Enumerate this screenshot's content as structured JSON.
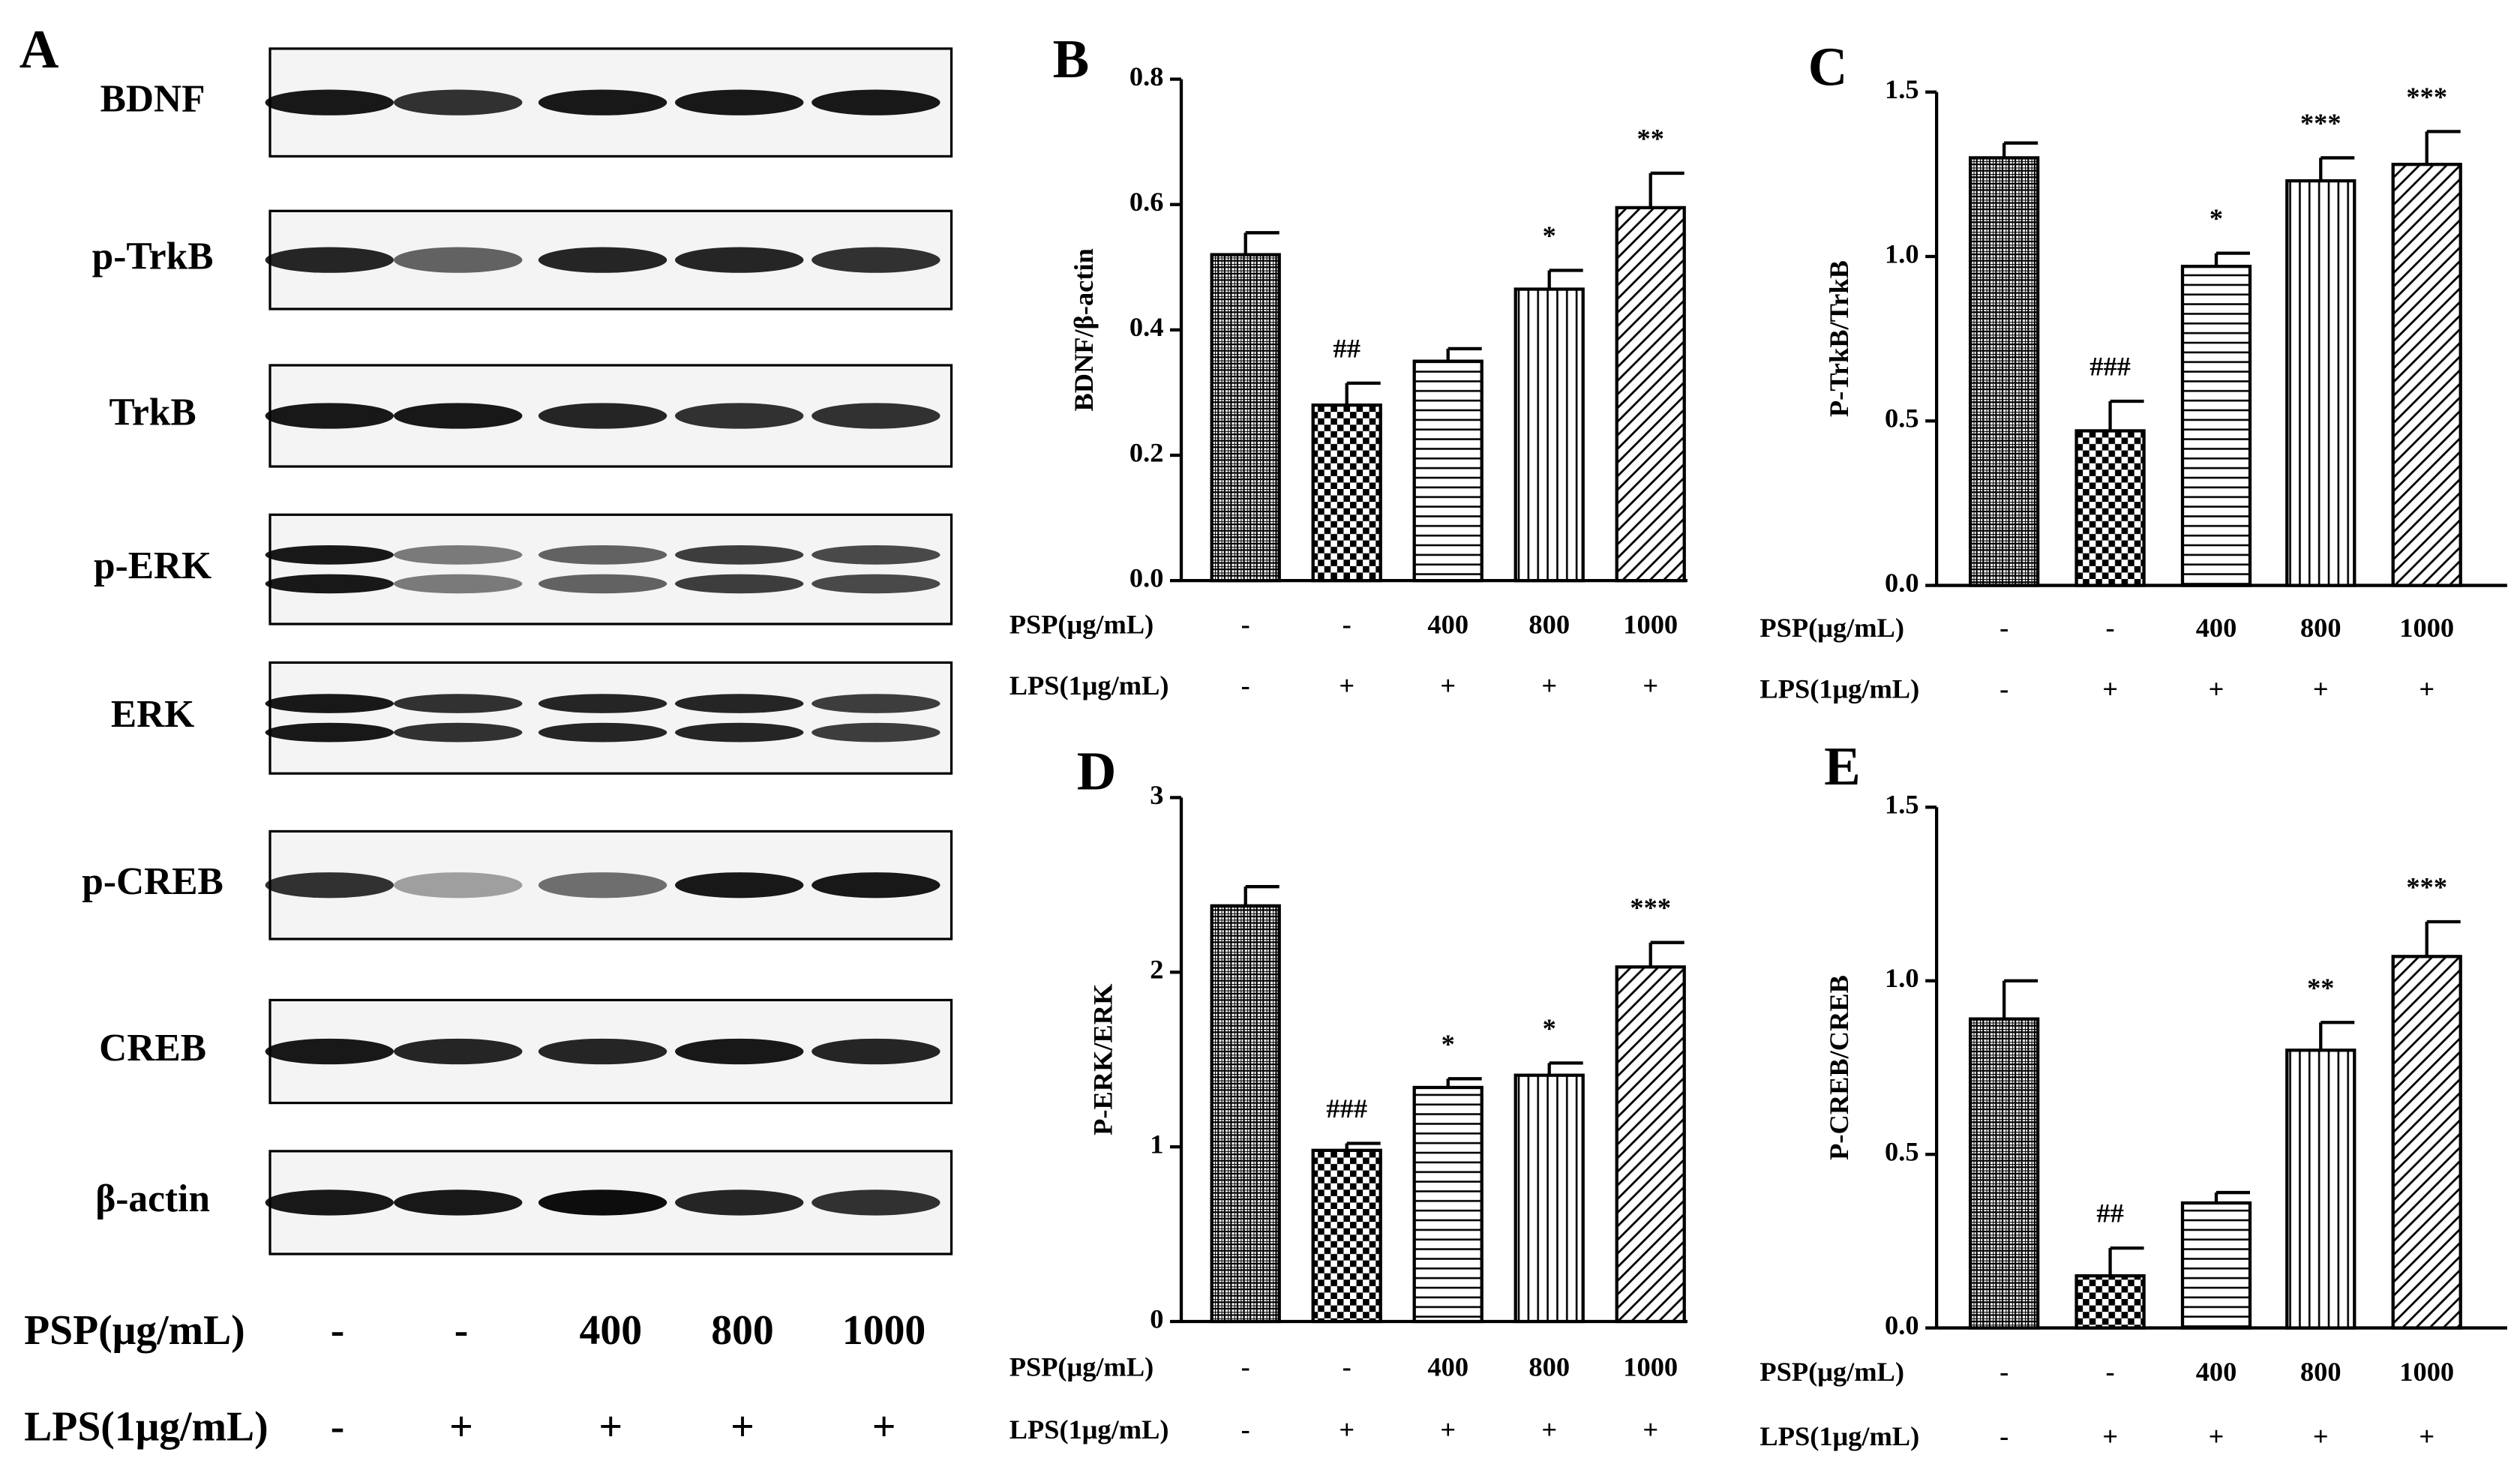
{
  "blot": {
    "panel": "A",
    "rows": [
      "BDNF",
      "p-TrkB",
      "TrkB",
      "p-ERK",
      "ERK",
      "p-CREB",
      "CREB",
      "β-actin"
    ],
    "treatments": [
      {
        "name": "PSP(μg/mL)",
        "labels": [
          "-",
          "-",
          "400",
          "800",
          "1000"
        ]
      },
      {
        "name": "LPS(1μg/mL)",
        "labels": [
          "-",
          "+",
          "+",
          "+",
          "+"
        ]
      }
    ]
  },
  "chart_data": [
    {
      "type": "bar",
      "panel": "B",
      "ylabel": "BDNF/β-actin",
      "values": [
        0.52,
        0.28,
        0.35,
        0.465,
        0.595
      ],
      "errors": [
        0.035,
        0.035,
        0.02,
        0.03,
        0.055
      ],
      "annotations": [
        null,
        "##",
        null,
        "*",
        "**"
      ],
      "patterns": [
        "crosshatch",
        "checker",
        "hlines",
        "vlines",
        "diagonal"
      ],
      "ylim": [
        0,
        0.8
      ],
      "yticks": [
        {
          "value": 0,
          "label": "0.0"
        },
        0.2,
        0.4,
        0.6,
        0.8
      ],
      "treatments": [
        {
          "name": "PSP(μg/mL)",
          "labels": [
            "-",
            "-",
            "400",
            "800",
            "1000"
          ]
        },
        {
          "name": "LPS(1μg/mL)",
          "labels": [
            "-",
            "+",
            "+",
            "+",
            "+"
          ]
        }
      ]
    },
    {
      "type": "bar",
      "panel": "C",
      "ylabel": "P-TrkB/TrkB",
      "values": [
        1.3,
        0.47,
        0.97,
        1.23,
        1.28
      ],
      "errors": [
        0.045,
        0.09,
        0.04,
        0.07,
        0.1
      ],
      "annotations": [
        null,
        "###",
        "*",
        "***",
        "***"
      ],
      "patterns": [
        "crosshatch",
        "checker",
        "hlines",
        "vlines",
        "diagonal"
      ],
      "ylim": [
        0,
        1.5
      ],
      "yticks": [
        {
          "value": 0,
          "label": "0.0"
        },
        0.5,
        {
          "value": 1,
          "label": "1.0"
        },
        1.5
      ],
      "treatments": [
        {
          "name": "PSP(μg/mL)",
          "labels": [
            "-",
            "-",
            "400",
            "800",
            "1000"
          ]
        },
        {
          "name": "LPS(1μg/mL)",
          "labels": [
            "-",
            "+",
            "+",
            "+",
            "+"
          ]
        }
      ]
    },
    {
      "type": "bar",
      "panel": "D",
      "ylabel": "P-ERK/ERK",
      "values": [
        2.38,
        0.98,
        1.34,
        1.41,
        2.03
      ],
      "errors": [
        0.11,
        0.04,
        0.05,
        0.07,
        0.14
      ],
      "annotations": [
        null,
        "###",
        "*",
        "*",
        "***"
      ],
      "patterns": [
        "crosshatch",
        "checker",
        "hlines",
        "vlines",
        "diagonal"
      ],
      "ylim": [
        0,
        3
      ],
      "yticks": [
        0,
        1,
        2,
        3
      ],
      "treatments": [
        {
          "name": "PSP(μg/mL)",
          "labels": [
            "-",
            "-",
            "400",
            "800",
            "1000"
          ]
        },
        {
          "name": "LPS(1μg/mL)",
          "labels": [
            "-",
            "+",
            "+",
            "+",
            "+"
          ]
        }
      ]
    },
    {
      "type": "bar",
      "panel": "E",
      "ylabel": "P-CREB/CREB",
      "values": [
        0.89,
        0.15,
        0.36,
        0.8,
        1.07
      ],
      "errors": [
        0.11,
        0.08,
        0.03,
        0.08,
        0.1
      ],
      "annotations": [
        null,
        "##",
        null,
        "**",
        "***"
      ],
      "patterns": [
        "crosshatch",
        "checker",
        "hlines",
        "vlines",
        "diagonal"
      ],
      "ylim": [
        0,
        1.5
      ],
      "yticks": [
        {
          "value": 0,
          "label": "0.0"
        },
        0.5,
        {
          "value": 1,
          "label": "1.0"
        },
        1.5
      ],
      "treatments": [
        {
          "name": "PSP(μg/mL)",
          "labels": [
            "-",
            "-",
            "400",
            "800",
            "1000"
          ]
        },
        {
          "name": "LPS(1μg/mL)",
          "labels": [
            "-",
            "+",
            "+",
            "+",
            "+"
          ]
        }
      ]
    }
  ]
}
